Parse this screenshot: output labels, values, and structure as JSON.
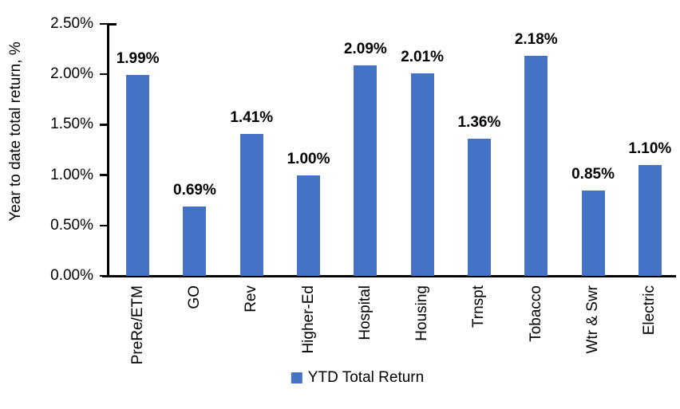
{
  "chart_data": {
    "type": "bar",
    "title": "",
    "xlabel": "",
    "ylabel": "Year to date total return, %",
    "categories": [
      "PreRe/ETM",
      "GO",
      "Rev",
      "Higher-Ed",
      "Hospital",
      "Housing",
      "Trnspt",
      "Tobacco",
      "Wtr & Swr",
      "Electric"
    ],
    "values": [
      1.99,
      0.69,
      1.41,
      1.0,
      2.09,
      2.01,
      1.36,
      2.18,
      0.85,
      1.1
    ],
    "value_labels": [
      "1.99%",
      "0.69%",
      "1.41%",
      "1.00%",
      "2.09%",
      "2.01%",
      "1.36%",
      "2.18%",
      "0.85%",
      "1.10%"
    ],
    "ylim": [
      0,
      2.5
    ],
    "y_ticks": [
      {
        "value": 0.0,
        "label": "0.00%"
      },
      {
        "value": 0.5,
        "label": "0.50%"
      },
      {
        "value": 1.0,
        "label": "1.00%"
      },
      {
        "value": 1.5,
        "label": "1.50%"
      },
      {
        "value": 2.0,
        "label": "2.00%"
      },
      {
        "value": 2.5,
        "label": "2.50%"
      }
    ],
    "grid": false,
    "bar_color": "#4472C4",
    "legend_position": "bottom",
    "legend": [
      {
        "label": "YTD Total Return",
        "color": "#4472C4"
      }
    ]
  }
}
